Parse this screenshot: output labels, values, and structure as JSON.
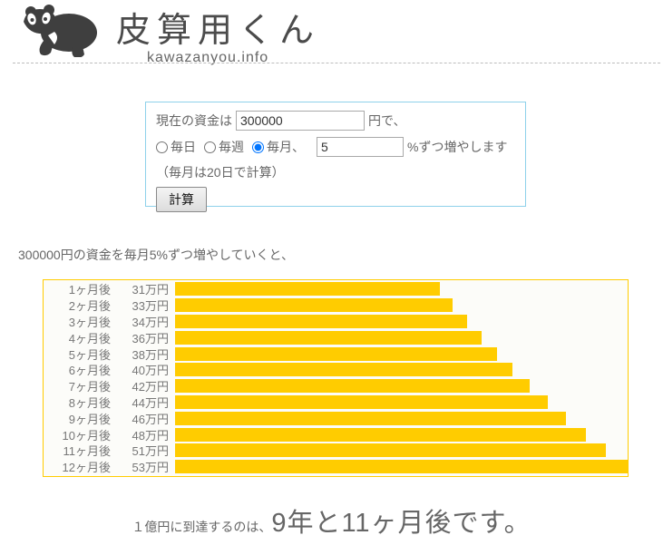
{
  "header": {
    "title": "皮算用くん",
    "domain": "kawazanyou.info"
  },
  "colors": {
    "accent": "#ffcc00",
    "form_border": "#8ed1ea",
    "logo": "#3f3f3f"
  },
  "form": {
    "amount_label_prefix": "現在の資金は",
    "amount_value": "300000",
    "amount_label_suffix": "円で、",
    "intervals": [
      {
        "label": "毎日",
        "selected": false
      },
      {
        "label": "毎週",
        "selected": false
      },
      {
        "label": "毎月、",
        "selected": true
      }
    ],
    "rate_value": "5",
    "rate_suffix": "%ずつ増やします",
    "note": "（毎月は20日で計算）",
    "submit_label": "計算"
  },
  "result": {
    "intro": "300000円の資金を毎月5%ずつ増やしていくと、",
    "final_prefix": "１億円に到達するのは、",
    "final_value": "9年と11ヶ月後です。"
  },
  "chart_data": {
    "type": "bar",
    "orientation": "horizontal",
    "title": "",
    "categories": [
      "1ヶ月後",
      "2ヶ月後",
      "3ヶ月後",
      "4ヶ月後",
      "5ヶ月後",
      "6ヶ月後",
      "7ヶ月後",
      "8ヶ月後",
      "9ヶ月後",
      "10ヶ月後",
      "11ヶ月後",
      "12ヶ月後"
    ],
    "value_labels": [
      "31万円",
      "33万円",
      "34万円",
      "36万円",
      "38万円",
      "40万円",
      "42万円",
      "44万円",
      "46万円",
      "48万円",
      "51万円",
      "53万円"
    ],
    "values_display": [
      31,
      33,
      34,
      36,
      38,
      40,
      42,
      44,
      46,
      48,
      51,
      53
    ],
    "unit": "万円",
    "bar_ratios": [
      0.5847,
      0.6139,
      0.6446,
      0.6768,
      0.7107,
      0.7462,
      0.7835,
      0.8227,
      0.8638,
      0.907,
      0.9524,
      1.0
    ],
    "bar_color": "#ffcc00",
    "legend": "none",
    "grid": false
  }
}
